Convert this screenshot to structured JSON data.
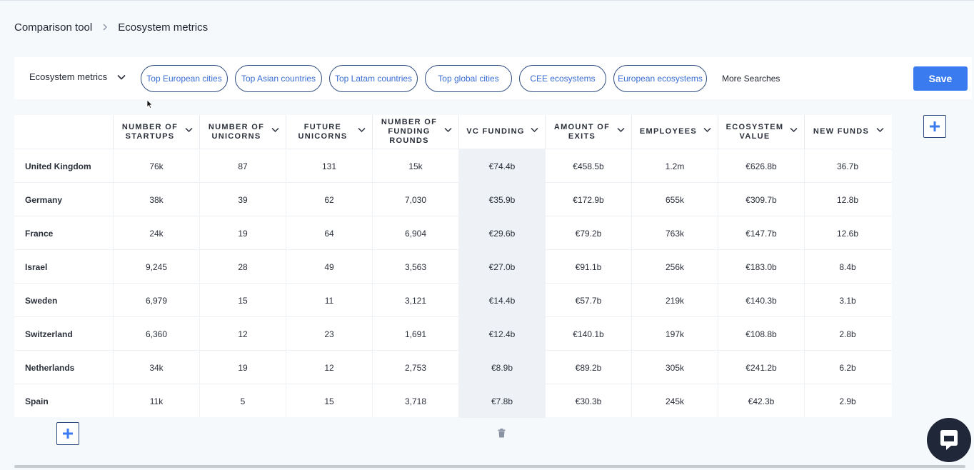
{
  "breadcrumb": {
    "root": "Comparison tool",
    "current": "Ecosystem metrics"
  },
  "filterbar": {
    "dropdown_label": "Ecosystem metrics",
    "pills": [
      "Top European cities",
      "Top Asian countries",
      "Top Latam countries",
      "Top global cities",
      "CEE ecosystems",
      "European ecosystems"
    ],
    "more_label": "More Searches",
    "save_label": "Save"
  },
  "table": {
    "columns": [
      "NUMBER OF STARTUPS",
      "NUMBER OF UNICORNS",
      "FUTURE UNICORNS",
      "NUMBER OF FUNDING ROUNDS",
      "VC FUNDING",
      "AMOUNT OF EXITS",
      "EMPLOYEES",
      "ECOSYSTEM VALUE",
      "NEW FUNDS"
    ],
    "rows": [
      {
        "name": "United Kingdom",
        "values": [
          "76k",
          "87",
          "131",
          "15k",
          "€74.4b",
          "€458.5b",
          "1.2m",
          "€626.8b",
          "36.7b"
        ]
      },
      {
        "name": "Germany",
        "values": [
          "38k",
          "39",
          "62",
          "7,030",
          "€35.9b",
          "€172.9b",
          "655k",
          "€309.7b",
          "12.8b"
        ]
      },
      {
        "name": "France",
        "values": [
          "24k",
          "19",
          "64",
          "6,904",
          "€29.6b",
          "€79.2b",
          "763k",
          "€147.7b",
          "12.6b"
        ]
      },
      {
        "name": "Israel",
        "values": [
          "9,245",
          "28",
          "49",
          "3,563",
          "€27.0b",
          "€91.1b",
          "256k",
          "€183.0b",
          "8.4b"
        ]
      },
      {
        "name": "Sweden",
        "values": [
          "6,979",
          "15",
          "11",
          "3,121",
          "€14.4b",
          "€57.7b",
          "219k",
          "€140.3b",
          "3.1b"
        ]
      },
      {
        "name": "Switzerland",
        "values": [
          "6,360",
          "12",
          "23",
          "1,691",
          "€12.4b",
          "€140.1b",
          "197k",
          "€108.8b",
          "2.8b"
        ]
      },
      {
        "name": "Netherlands",
        "values": [
          "34k",
          "19",
          "12",
          "2,753",
          "€8.9b",
          "€89.2b",
          "305k",
          "€241.2b",
          "6.2b"
        ]
      },
      {
        "name": "Spain",
        "values": [
          "11k",
          "5",
          "15",
          "3,718",
          "€7.8b",
          "€30.3b",
          "245k",
          "€42.3b",
          "2.9b"
        ]
      }
    ]
  },
  "icons": {
    "dropdown": "chevron-down-icon",
    "add": "plus-icon",
    "delete": "trash-icon",
    "chat": "chat-bubble-icon"
  },
  "colors": {
    "accent": "#3a7bf0",
    "pill_text": "#3b6fd4",
    "highlight_column": "#eef2f7"
  }
}
